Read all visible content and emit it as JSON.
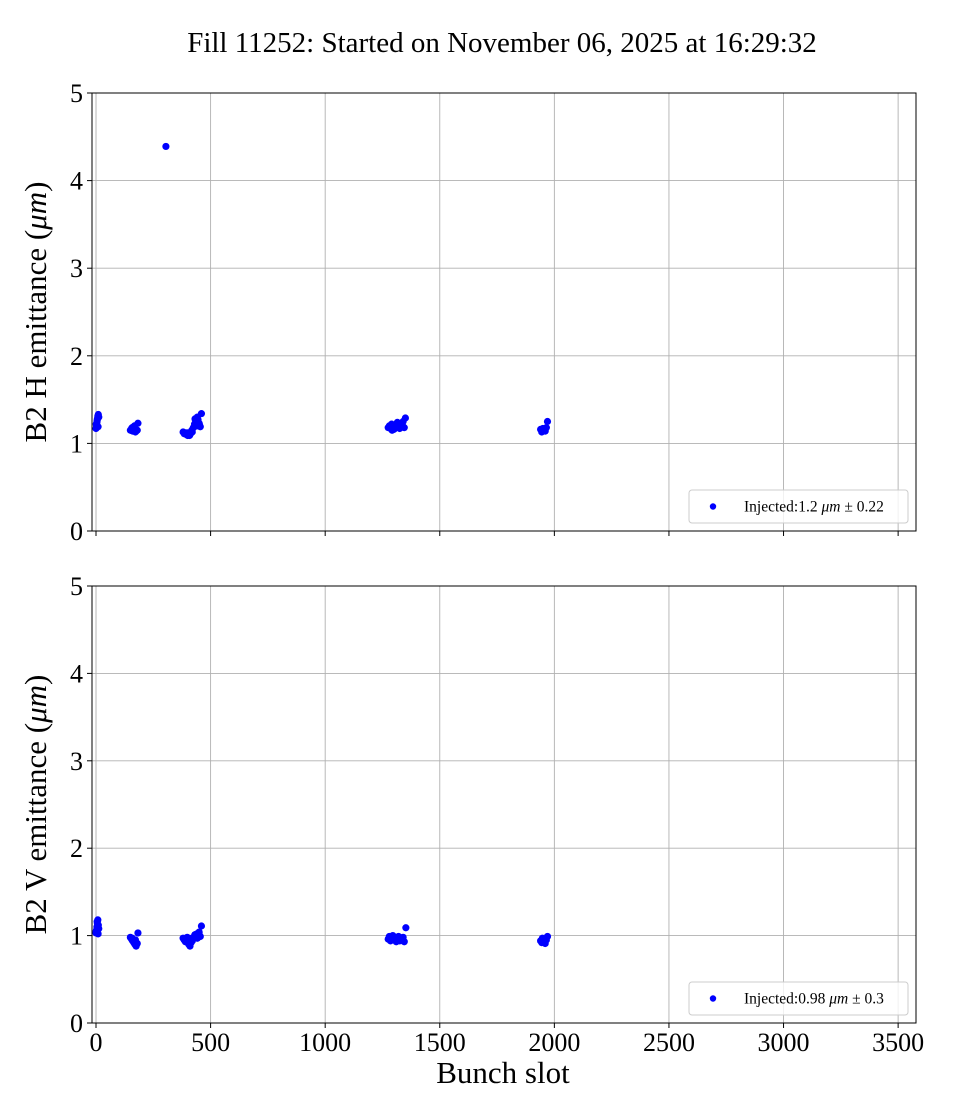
{
  "chart_data": {
    "type": "scatter",
    "title": "Fill 11252: Started on November 06, 2025 at 16:29:32",
    "xlabel": "Bunch slot",
    "xlim": [
      -17.5,
      3578
    ],
    "xticks": [
      0,
      500,
      1000,
      1500,
      2000,
      2500,
      3000,
      3500
    ],
    "grid": true,
    "color": "#0000ff",
    "panels": [
      {
        "ylabel_prefix": "B2 H emittance (",
        "ylabel_unit": "μm",
        "ylabel_suffix": ")",
        "ylim": [
          0,
          5
        ],
        "yticks": [
          0,
          1,
          2,
          3,
          4,
          5
        ],
        "legend": {
          "prefix": "Injected:1.2 ",
          "unit": "μm",
          "suffix": " ± 0.22",
          "placement": "lower-right"
        },
        "x": [
          0,
          2,
          4,
          6,
          8,
          10,
          12,
          1,
          5,
          9,
          150,
          155,
          160,
          165,
          170,
          175,
          180,
          183,
          158,
          168,
          172,
          380,
          385,
          390,
          395,
          400,
          405,
          410,
          415,
          420,
          398,
          408,
          418,
          425,
          430,
          435,
          440,
          445,
          450,
          455,
          460,
          432,
          442,
          452,
          1275,
          1280,
          1285,
          1290,
          1295,
          1300,
          1305,
          1310,
          1315,
          1320,
          1325,
          1330,
          1335,
          1340,
          1345,
          1350,
          1292,
          1318,
          1338,
          1940,
          1945,
          1950,
          1955,
          1960,
          1965,
          1970,
          1948,
          1958,
          305
        ],
        "y": [
          1.17,
          1.2,
          1.24,
          1.28,
          1.31,
          1.33,
          1.3,
          1.22,
          1.26,
          1.19,
          1.15,
          1.17,
          1.14,
          1.19,
          1.16,
          1.14,
          1.15,
          1.23,
          1.18,
          1.2,
          1.13,
          1.13,
          1.11,
          1.12,
          1.1,
          1.09,
          1.11,
          1.1,
          1.12,
          1.13,
          1.12,
          1.09,
          1.15,
          1.18,
          1.22,
          1.25,
          1.2,
          1.27,
          1.23,
          1.19,
          1.34,
          1.28,
          1.3,
          1.21,
          1.18,
          1.2,
          1.17,
          1.22,
          1.19,
          1.16,
          1.21,
          1.18,
          1.24,
          1.2,
          1.17,
          1.22,
          1.19,
          1.25,
          1.18,
          1.29,
          1.15,
          1.23,
          1.2,
          1.16,
          1.13,
          1.17,
          1.15,
          1.14,
          1.18,
          1.25,
          1.16,
          1.15,
          4.39
        ]
      },
      {
        "ylabel_prefix": "B2 V emittance (",
        "ylabel_unit": "μm",
        "ylabel_suffix": ")",
        "ylim": [
          0,
          5
        ],
        "yticks": [
          0,
          1,
          2,
          3,
          4,
          5
        ],
        "legend": {
          "prefix": "Injected:0.98 ",
          "unit": "μm",
          "suffix": " ± 0.3",
          "placement": "lower-right"
        },
        "x": [
          0,
          2,
          4,
          6,
          8,
          10,
          12,
          1,
          5,
          9,
          150,
          155,
          160,
          165,
          170,
          175,
          180,
          183,
          158,
          168,
          172,
          380,
          385,
          390,
          395,
          400,
          405,
          410,
          415,
          420,
          398,
          408,
          418,
          425,
          430,
          435,
          440,
          445,
          450,
          455,
          460,
          432,
          442,
          452,
          1275,
          1280,
          1285,
          1290,
          1295,
          1300,
          1305,
          1310,
          1315,
          1320,
          1325,
          1330,
          1335,
          1340,
          1345,
          1352,
          1292,
          1318,
          1338,
          1940,
          1945,
          1950,
          1955,
          1960,
          1965,
          1970,
          1948,
          1958
        ],
        "y": [
          1.03,
          1.06,
          1.1,
          1.14,
          1.18,
          1.12,
          1.08,
          1.05,
          1.16,
          1.02,
          0.98,
          0.96,
          0.94,
          0.92,
          0.9,
          0.88,
          0.91,
          1.03,
          0.97,
          0.93,
          0.95,
          0.97,
          0.95,
          0.93,
          0.96,
          0.94,
          0.9,
          0.88,
          0.92,
          0.94,
          0.98,
          0.91,
          0.97,
          0.97,
          1.0,
          0.99,
          1.02,
          0.98,
          1.04,
          0.99,
          1.11,
          1.01,
          0.97,
          1.0,
          0.96,
          0.99,
          0.94,
          0.97,
          1.0,
          0.95,
          0.98,
          0.93,
          0.96,
          0.99,
          0.94,
          0.97,
          0.95,
          0.98,
          0.93,
          1.09,
          0.97,
          0.95,
          0.96,
          0.94,
          0.92,
          0.96,
          0.93,
          0.91,
          0.95,
          0.99,
          0.97,
          0.94
        ]
      }
    ]
  }
}
